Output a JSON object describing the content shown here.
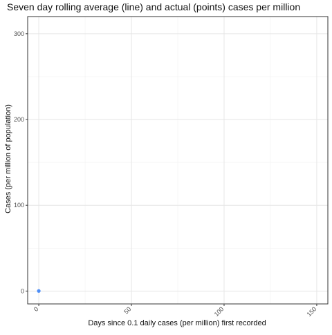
{
  "chart_data": {
    "type": "line",
    "title": "Seven day rolling average (line) and actual (points) cases per million",
    "xlabel": "Days since 0.1 daily cases (per million) first recorded",
    "ylabel": "Cases (per million of population)",
    "xlim": [
      -6,
      156
    ],
    "ylim": [
      -15,
      320
    ],
    "xticks": [
      0,
      50,
      100,
      150
    ],
    "yticks": [
      0,
      100,
      200,
      300
    ],
    "grid": true,
    "series": [
      {
        "points": [
          {
            "x": 0,
            "y": 0.1
          }
        ],
        "color": "#4d8ef7"
      }
    ]
  },
  "style": {
    "panel_border": "#333333",
    "grid_major": "#e6e6e6",
    "grid_minor": "#f2f2f2",
    "tick_label": "#4d4d4d"
  }
}
